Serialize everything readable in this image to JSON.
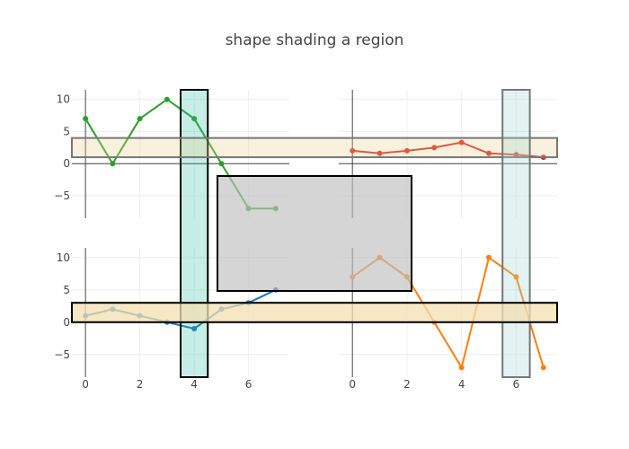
{
  "chart_data": {
    "type": "line",
    "title": "shape shading a region",
    "legend": "none",
    "grid": true,
    "x_ticks": [
      "0",
      "2",
      "4",
      "6"
    ],
    "y_ticks": [
      "10",
      "5",
      "0",
      "−5"
    ],
    "panels": [
      {
        "id": "top-left",
        "xlim": [
          -0.5,
          7.5
        ],
        "ylim": [
          -8.5,
          11.5
        ],
        "series": [
          {
            "x": [
              0,
              1,
              2,
              3,
              4,
              5,
              6,
              7
            ],
            "y": [
              7,
              0,
              7,
              10,
              7,
              0,
              -7,
              -7
            ],
            "color": "#2ca02c"
          }
        ]
      },
      {
        "id": "top-right",
        "xlim": [
          -0.5,
          7.5
        ],
        "ylim": [
          -8.5,
          11.5
        ],
        "series": [
          {
            "x": [
              0,
              1,
              2,
              3,
              4,
              5,
              6,
              7
            ],
            "y": [
              2,
              1.6,
              2,
              2.5,
              3.3,
              1.6,
              1.4,
              1
            ],
            "color": "#d62728"
          }
        ]
      },
      {
        "id": "bottom-left",
        "xlim": [
          -0.5,
          7.5
        ],
        "ylim": [
          -8.5,
          11.5
        ],
        "series": [
          {
            "x": [
              0,
              1,
              2,
              3,
              4,
              5,
              6,
              7
            ],
            "y": [
              1,
              2,
              1,
              0,
              -1,
              2,
              3,
              5
            ],
            "color": "#1f77b4"
          }
        ]
      },
      {
        "id": "bottom-right",
        "xlim": [
          -0.5,
          7.5
        ],
        "ylim": [
          -8.5,
          11.5
        ],
        "series": [
          {
            "x": [
              0,
              1,
              2,
              3,
              4,
              5,
              6,
              7
            ],
            "y": [
              7,
              10,
              7,
              0,
              -7,
              10,
              7,
              -7
            ],
            "color": "#ff7f0e"
          }
        ]
      }
    ],
    "shapes": [
      {
        "id": "vband-x3.5-4.5",
        "kind": "vertical-band",
        "x_range": [
          3.5,
          4.5
        ],
        "fill": "#1abc9c",
        "fill_opacity": 0.25,
        "stroke": "#000000",
        "stroke_width": 2
      },
      {
        "id": "hband-y1-4",
        "kind": "horizontal-band",
        "y_range": [
          1,
          4
        ],
        "fill": "#e8cf8f",
        "fill_opacity": 0.3,
        "stroke": "#777777",
        "stroke_width": 2
      },
      {
        "id": "vband-x5.5-6.5",
        "kind": "vertical-band",
        "x_range": [
          5.5,
          6.5
        ],
        "fill": "#9fd6cf",
        "fill_opacity": 0.3,
        "stroke": "#777777",
        "stroke_width": 2
      },
      {
        "id": "hband-y0-3",
        "kind": "horizontal-band",
        "y_range": [
          0,
          3
        ],
        "fill": "#f3dfb2",
        "fill_opacity": 0.75,
        "stroke": "#000000",
        "stroke_width": 2
      },
      {
        "id": "gray-rect-center",
        "kind": "rectangle",
        "fill": "#bfbfbf",
        "fill_opacity": 0.65,
        "stroke": "#000000",
        "stroke_width": 2
      }
    ]
  }
}
